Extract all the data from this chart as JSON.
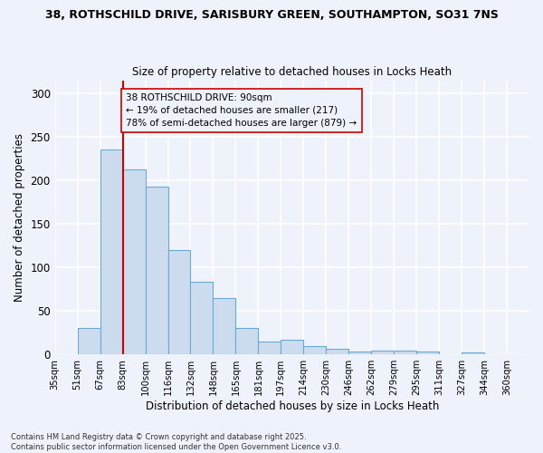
{
  "title_line1": "38, ROTHSCHILD DRIVE, SARISBURY GREEN, SOUTHAMPTON, SO31 7NS",
  "title_line2": "Size of property relative to detached houses in Locks Heath",
  "xlabel": "Distribution of detached houses by size in Locks Heath",
  "ylabel": "Number of detached properties",
  "categories": [
    "35sqm",
    "51sqm",
    "67sqm",
    "83sqm",
    "100sqm",
    "116sqm",
    "132sqm",
    "148sqm",
    "165sqm",
    "181sqm",
    "197sqm",
    "214sqm",
    "230sqm",
    "246sqm",
    "262sqm",
    "279sqm",
    "295sqm",
    "311sqm",
    "327sqm",
    "344sqm",
    "360sqm"
  ],
  "bar_values": [
    0,
    30,
    235,
    213,
    193,
    120,
    83,
    65,
    30,
    15,
    17,
    10,
    6,
    3,
    4,
    4,
    3,
    0,
    2,
    0,
    0
  ],
  "bar_color": "#ccdcee",
  "bar_edgecolor": "#6aaad4",
  "annotation_text": "38 ROTHSCHILD DRIVE: 90sqm\n← 19% of detached houses are smaller (217)\n78% of semi-detached houses are larger (879) →",
  "vline_color": "#cc0000",
  "annotation_box_edgecolor": "#cc0000",
  "ylim": [
    0,
    315
  ],
  "yticks": [
    0,
    50,
    100,
    150,
    200,
    250,
    300
  ],
  "background_color": "#eef2fa",
  "grid_color": "#ffffff",
  "footer_line1": "Contains HM Land Registry data © Crown copyright and database right 2025.",
  "footer_line2": "Contains public sector information licensed under the Open Government Licence v3.0."
}
